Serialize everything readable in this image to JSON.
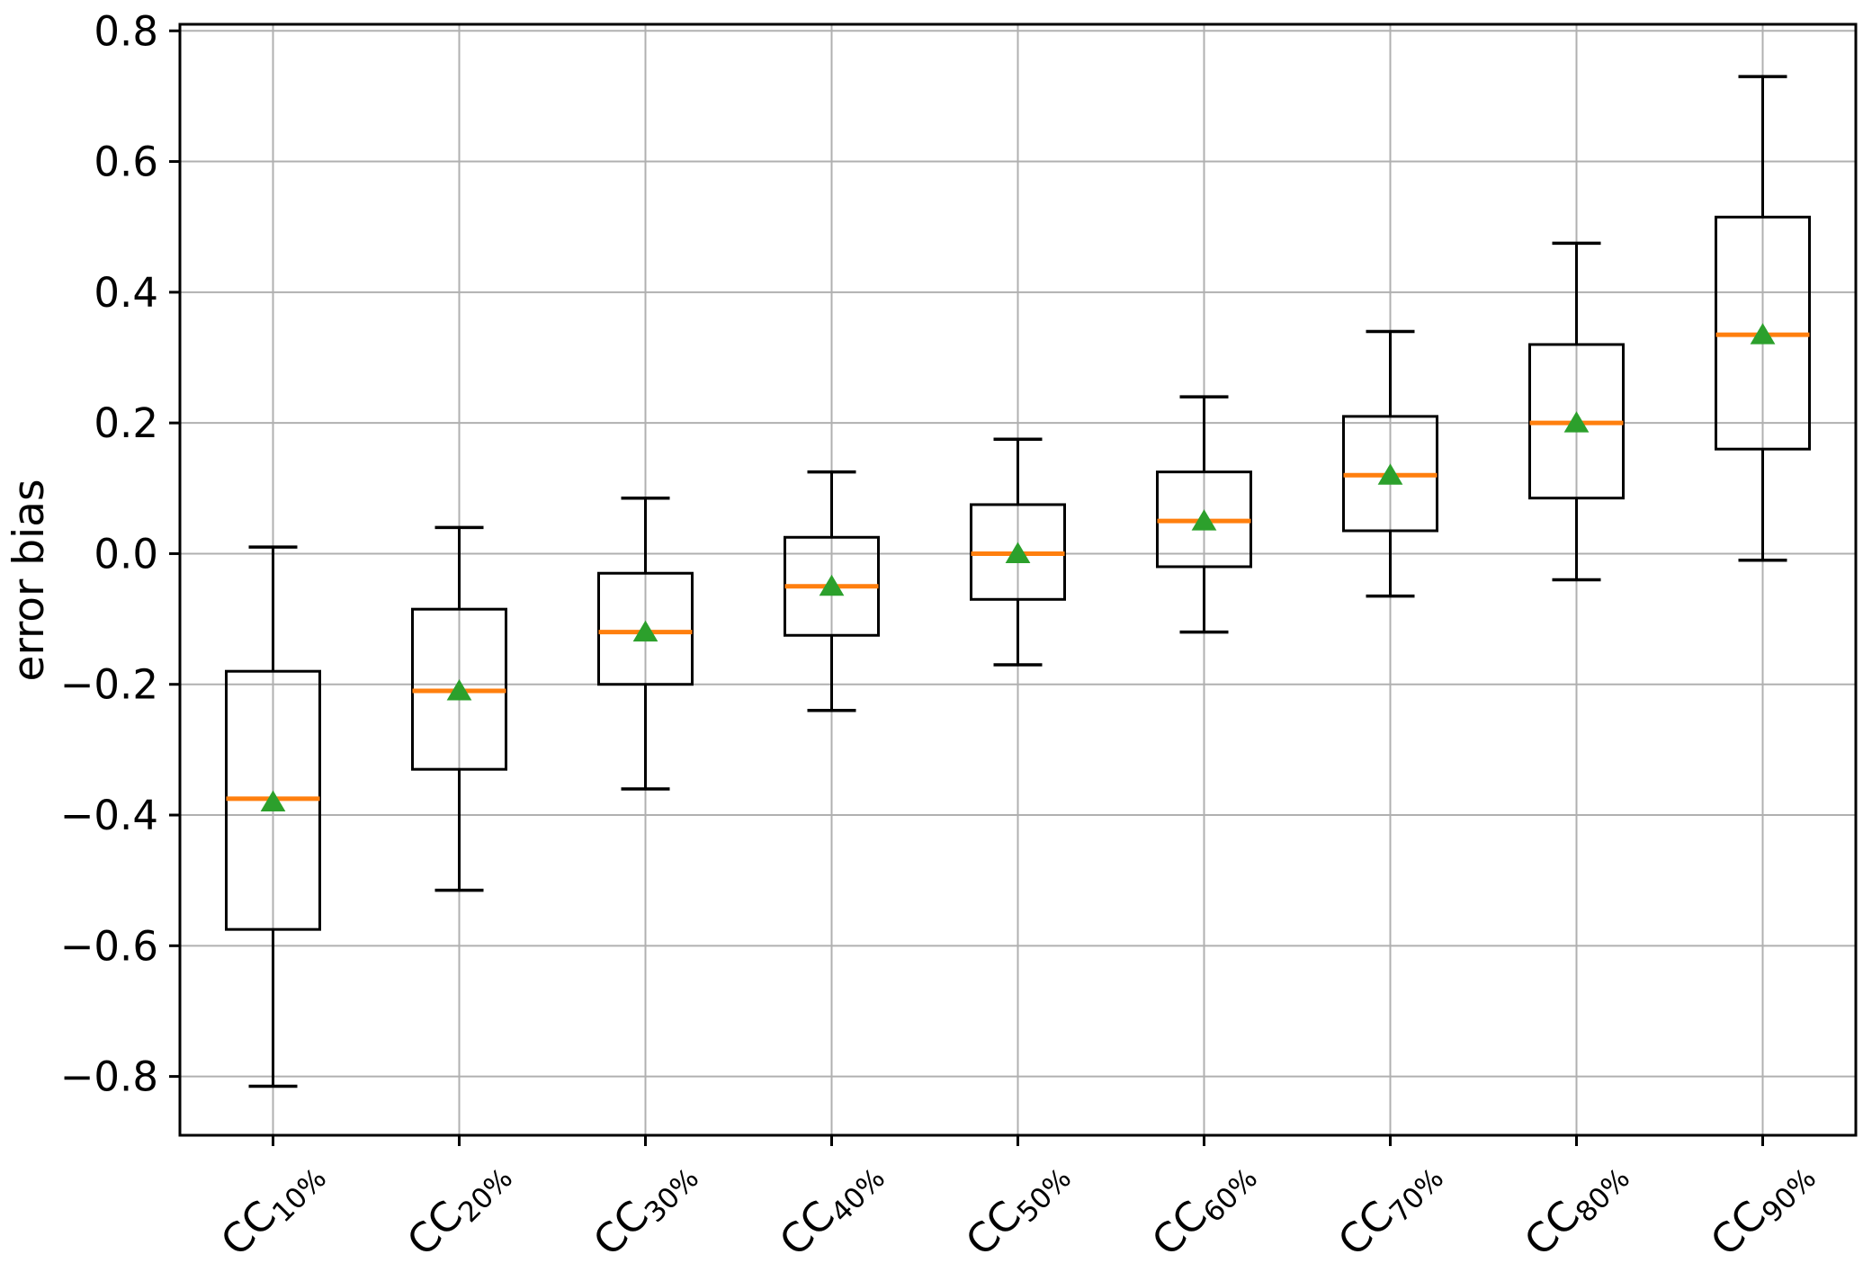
{
  "chart_data": {
    "type": "boxplot",
    "title": "",
    "xlabel": "",
    "ylabel": "error bias",
    "ylim": [
      -0.89,
      0.81
    ],
    "grid": true,
    "legend_position": "none",
    "yticks": [
      {
        "value": 0.8,
        "label": "0.8"
      },
      {
        "value": 0.6,
        "label": "0.6"
      },
      {
        "value": 0.4,
        "label": "0.4"
      },
      {
        "value": 0.2,
        "label": "0.2"
      },
      {
        "value": 0.0,
        "label": "0.0"
      },
      {
        "value": -0.2,
        "label": "−0.2"
      },
      {
        "value": -0.4,
        "label": "−0.4"
      },
      {
        "value": -0.6,
        "label": "−0.6"
      },
      {
        "value": -0.8,
        "label": "−0.8"
      }
    ],
    "categories": [
      {
        "main": "CC",
        "sub": "10%",
        "label": "CC10%"
      },
      {
        "main": "CC",
        "sub": "20%",
        "label": "CC20%"
      },
      {
        "main": "CC",
        "sub": "30%",
        "label": "CC30%"
      },
      {
        "main": "CC",
        "sub": "40%",
        "label": "CC40%"
      },
      {
        "main": "CC",
        "sub": "50%",
        "label": "CC50%"
      },
      {
        "main": "CC",
        "sub": "60%",
        "label": "CC60%"
      },
      {
        "main": "CC",
        "sub": "70%",
        "label": "CC70%"
      },
      {
        "main": "CC",
        "sub": "80%",
        "label": "CC80%"
      },
      {
        "main": "CC",
        "sub": "90%",
        "label": "CC90%"
      }
    ],
    "boxes": [
      {
        "category": "CC10%",
        "whisker_low": -0.815,
        "q1": -0.575,
        "median": -0.375,
        "mean": -0.38,
        "q3": -0.18,
        "whisker_high": 0.01
      },
      {
        "category": "CC20%",
        "whisker_low": -0.515,
        "q1": -0.33,
        "median": -0.21,
        "mean": -0.21,
        "q3": -0.085,
        "whisker_high": 0.04
      },
      {
        "category": "CC30%",
        "whisker_low": -0.36,
        "q1": -0.2,
        "median": -0.12,
        "mean": -0.12,
        "q3": -0.03,
        "whisker_high": 0.085
      },
      {
        "category": "CC40%",
        "whisker_low": -0.24,
        "q1": -0.125,
        "median": -0.05,
        "mean": -0.05,
        "q3": 0.025,
        "whisker_high": 0.125
      },
      {
        "category": "CC50%",
        "whisker_low": -0.17,
        "q1": -0.07,
        "median": 0.0,
        "mean": 0.0,
        "q3": 0.075,
        "whisker_high": 0.175
      },
      {
        "category": "CC60%",
        "whisker_low": -0.12,
        "q1": -0.02,
        "median": 0.05,
        "mean": 0.05,
        "q3": 0.125,
        "whisker_high": 0.24
      },
      {
        "category": "CC70%",
        "whisker_low": -0.065,
        "q1": 0.035,
        "median": 0.12,
        "mean": 0.12,
        "q3": 0.21,
        "whisker_high": 0.34
      },
      {
        "category": "CC80%",
        "whisker_low": -0.04,
        "q1": 0.085,
        "median": 0.2,
        "mean": 0.2,
        "q3": 0.32,
        "whisker_high": 0.475
      },
      {
        "category": "CC90%",
        "whisker_low": -0.01,
        "q1": 0.16,
        "median": 0.335,
        "mean": 0.335,
        "q3": 0.515,
        "whisker_high": 0.73
      }
    ],
    "mean_marker_shape": "triangle-up",
    "colors": {
      "box_edge": "#000000",
      "whisker": "#000000",
      "median": "#ff7f0e",
      "mean_marker": "#2ca02c",
      "grid": "#b0b0b0",
      "spine": "#000000",
      "background": "#ffffff"
    }
  }
}
